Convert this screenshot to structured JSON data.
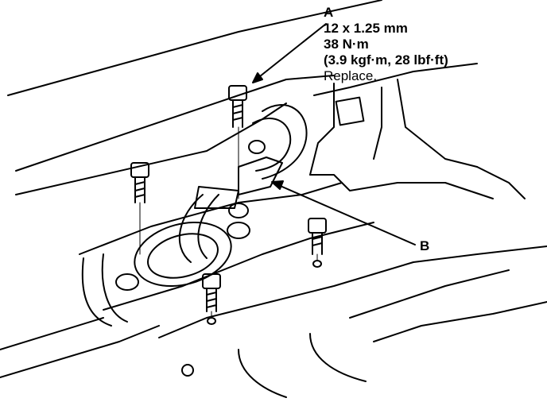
{
  "callouts": {
    "a": {
      "letter": "A",
      "size": "12 x 1.25 mm",
      "torque_nm": "38 N·m",
      "torque_alt": "(3.9 kgf·m, 28 lbf·ft)",
      "note": "Replace."
    },
    "b": {
      "letter": "B"
    }
  },
  "colors": {
    "ink": "#000000",
    "paper": "#ffffff"
  }
}
